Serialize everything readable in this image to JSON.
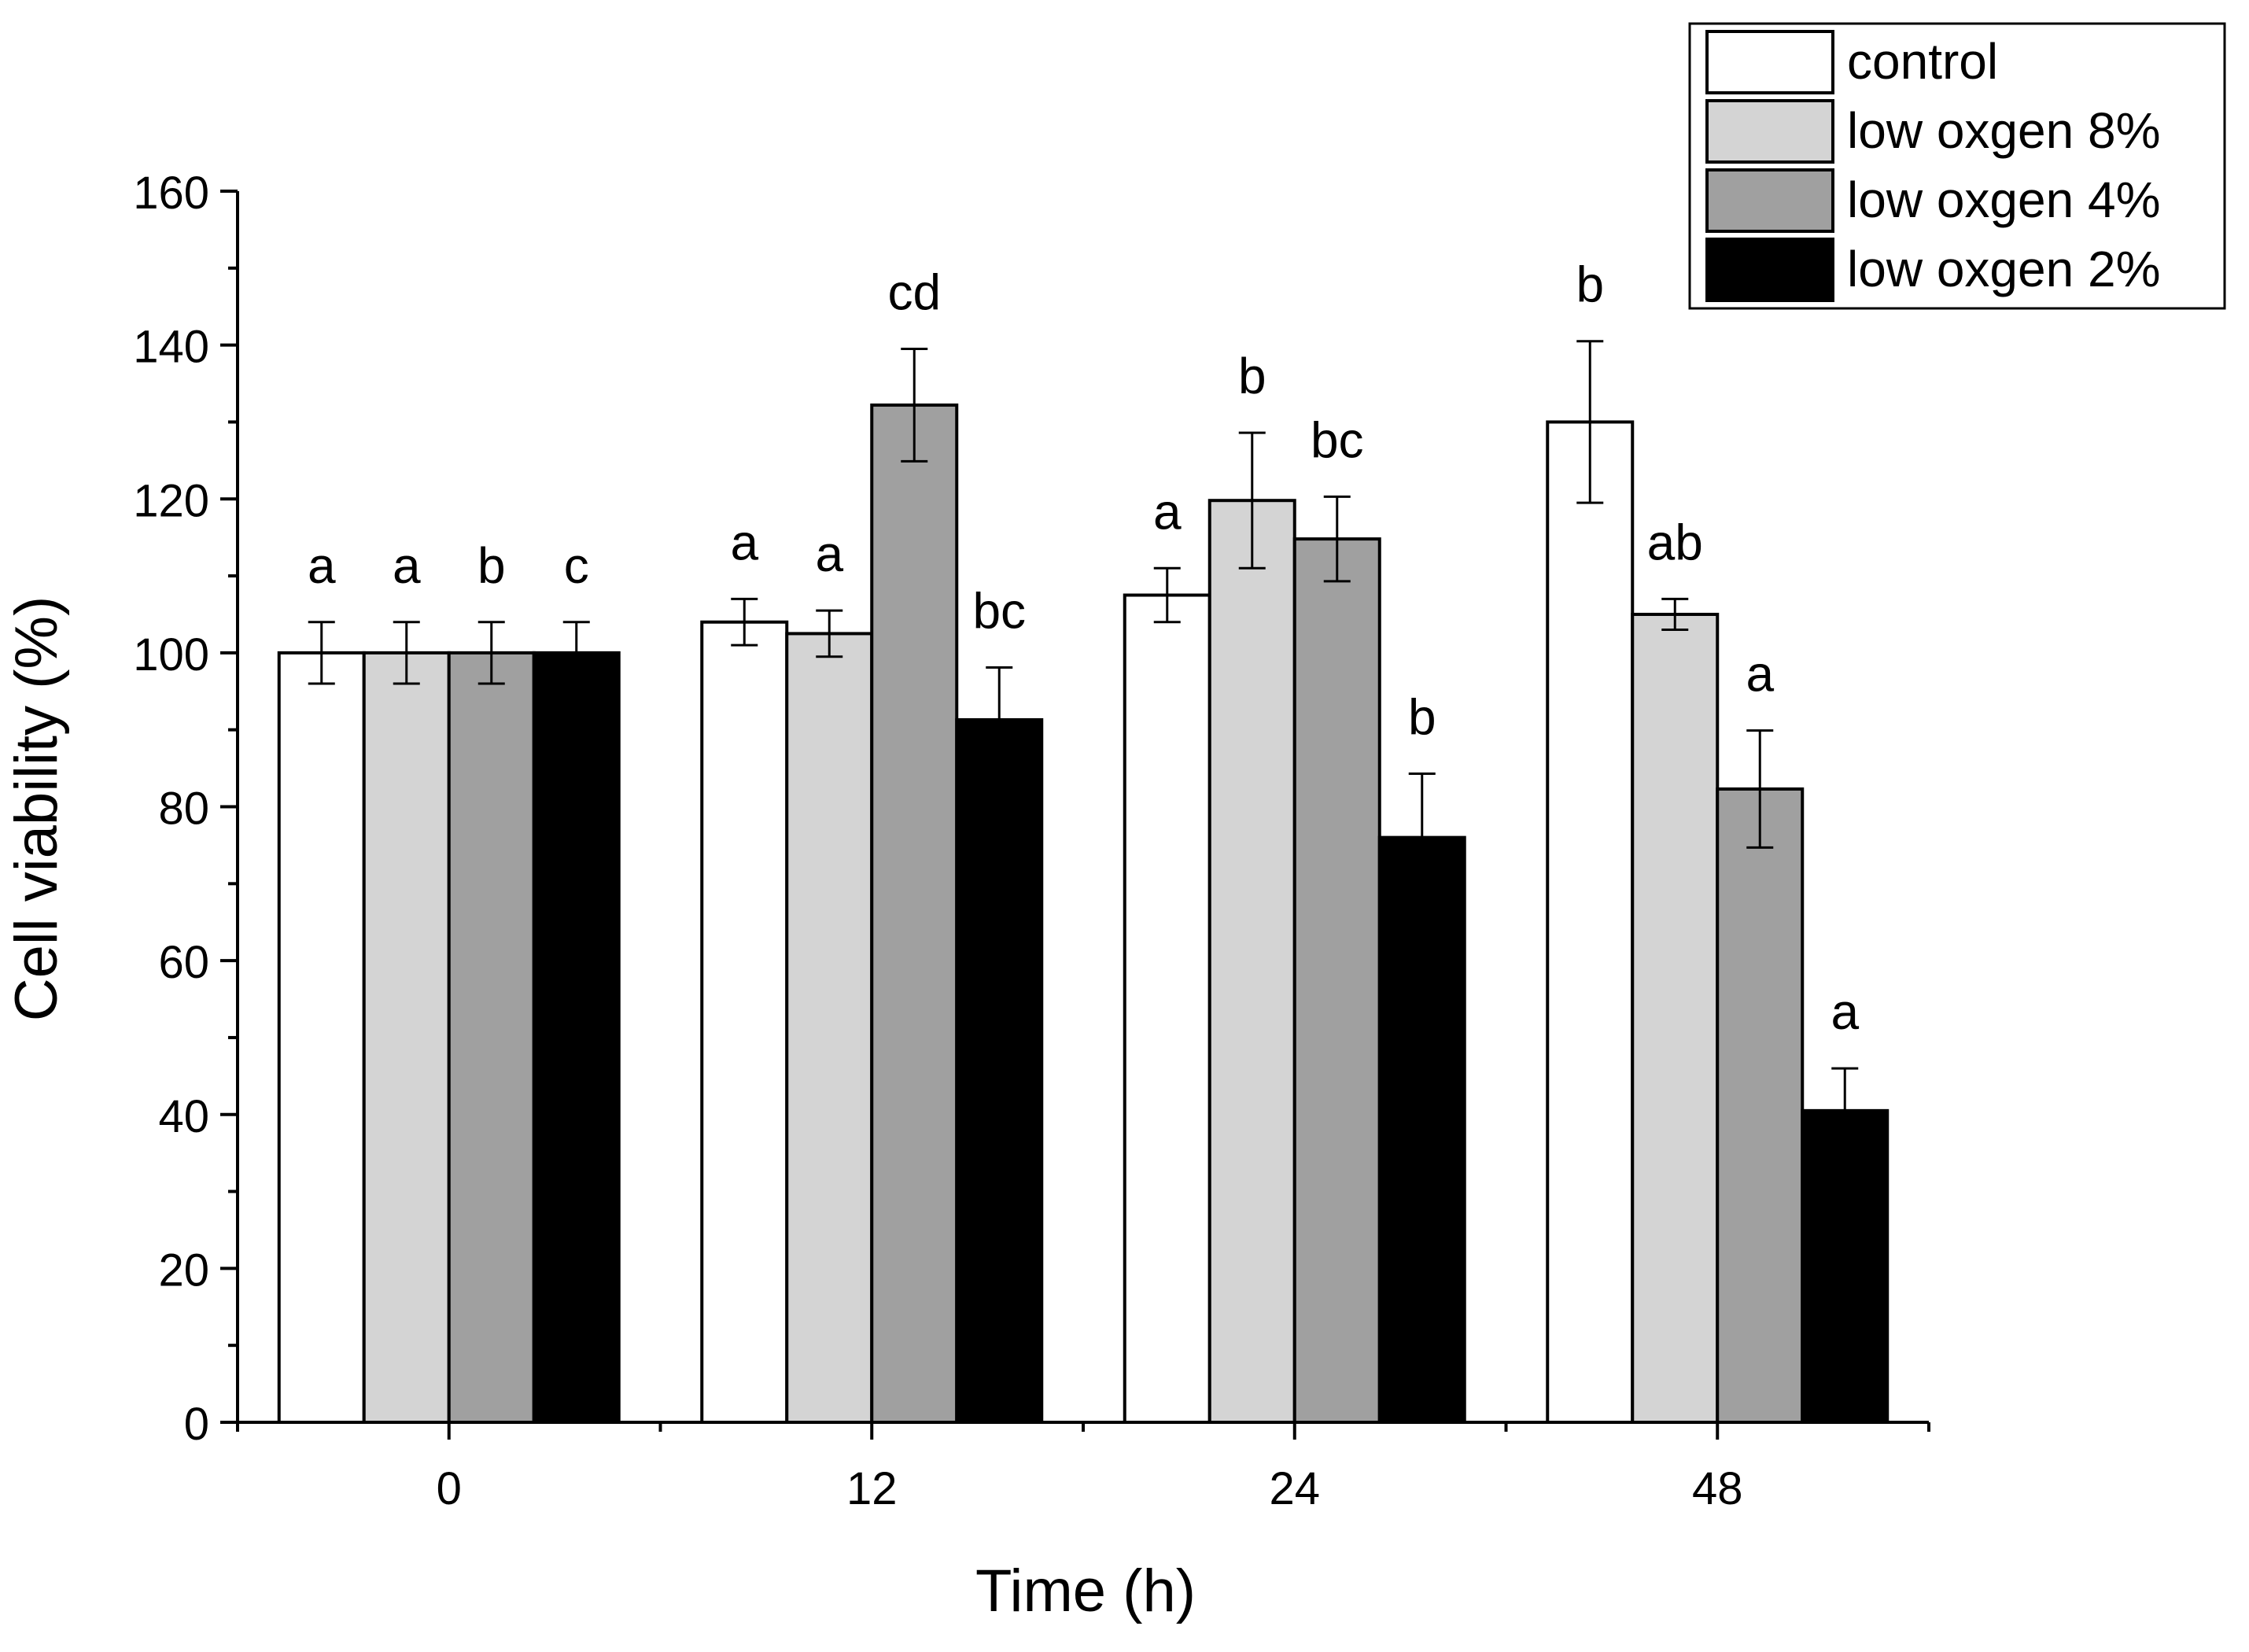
{
  "chart_data": {
    "type": "bar",
    "xlabel": "Time (h)",
    "ylabel": "Cell viability (%)",
    "ylim": [
      0,
      160
    ],
    "ytick_step": 20,
    "yticks": [
      "0",
      "20",
      "40",
      "60",
      "80",
      "100",
      "120",
      "140",
      "160"
    ],
    "categories": [
      "0",
      "12",
      "24",
      "48"
    ],
    "legend_position": "top-right",
    "series": [
      {
        "name": "control",
        "color": "#ffffff",
        "values": [
          100,
          104,
          107.5,
          130
        ],
        "errors": [
          4,
          3,
          3.5,
          10.5
        ],
        "letters": [
          "a",
          "a",
          "a",
          "b"
        ]
      },
      {
        "name": "low oxgen 8%",
        "color": "#d4d4d4",
        "values": [
          100,
          102.5,
          119.8,
          105
        ],
        "errors": [
          4,
          3,
          8.8,
          2
        ],
        "letters": [
          "a",
          "a",
          "b",
          "ab"
        ]
      },
      {
        "name": "low oxgen 4%",
        "color": "#a0a0a0",
        "values": [
          100,
          132.2,
          114.8,
          82.3
        ],
        "errors": [
          4,
          7.3,
          5.5,
          7.6
        ],
        "letters": [
          "b",
          "cd",
          "bc",
          "a"
        ]
      },
      {
        "name": "low oxgen 2%",
        "color": "#000000",
        "values": [
          100,
          91.3,
          76,
          40.5
        ],
        "errors": [
          4,
          6.8,
          8.3,
          5.5
        ],
        "letters": [
          "c",
          "bc",
          "b",
          "a"
        ]
      }
    ]
  }
}
